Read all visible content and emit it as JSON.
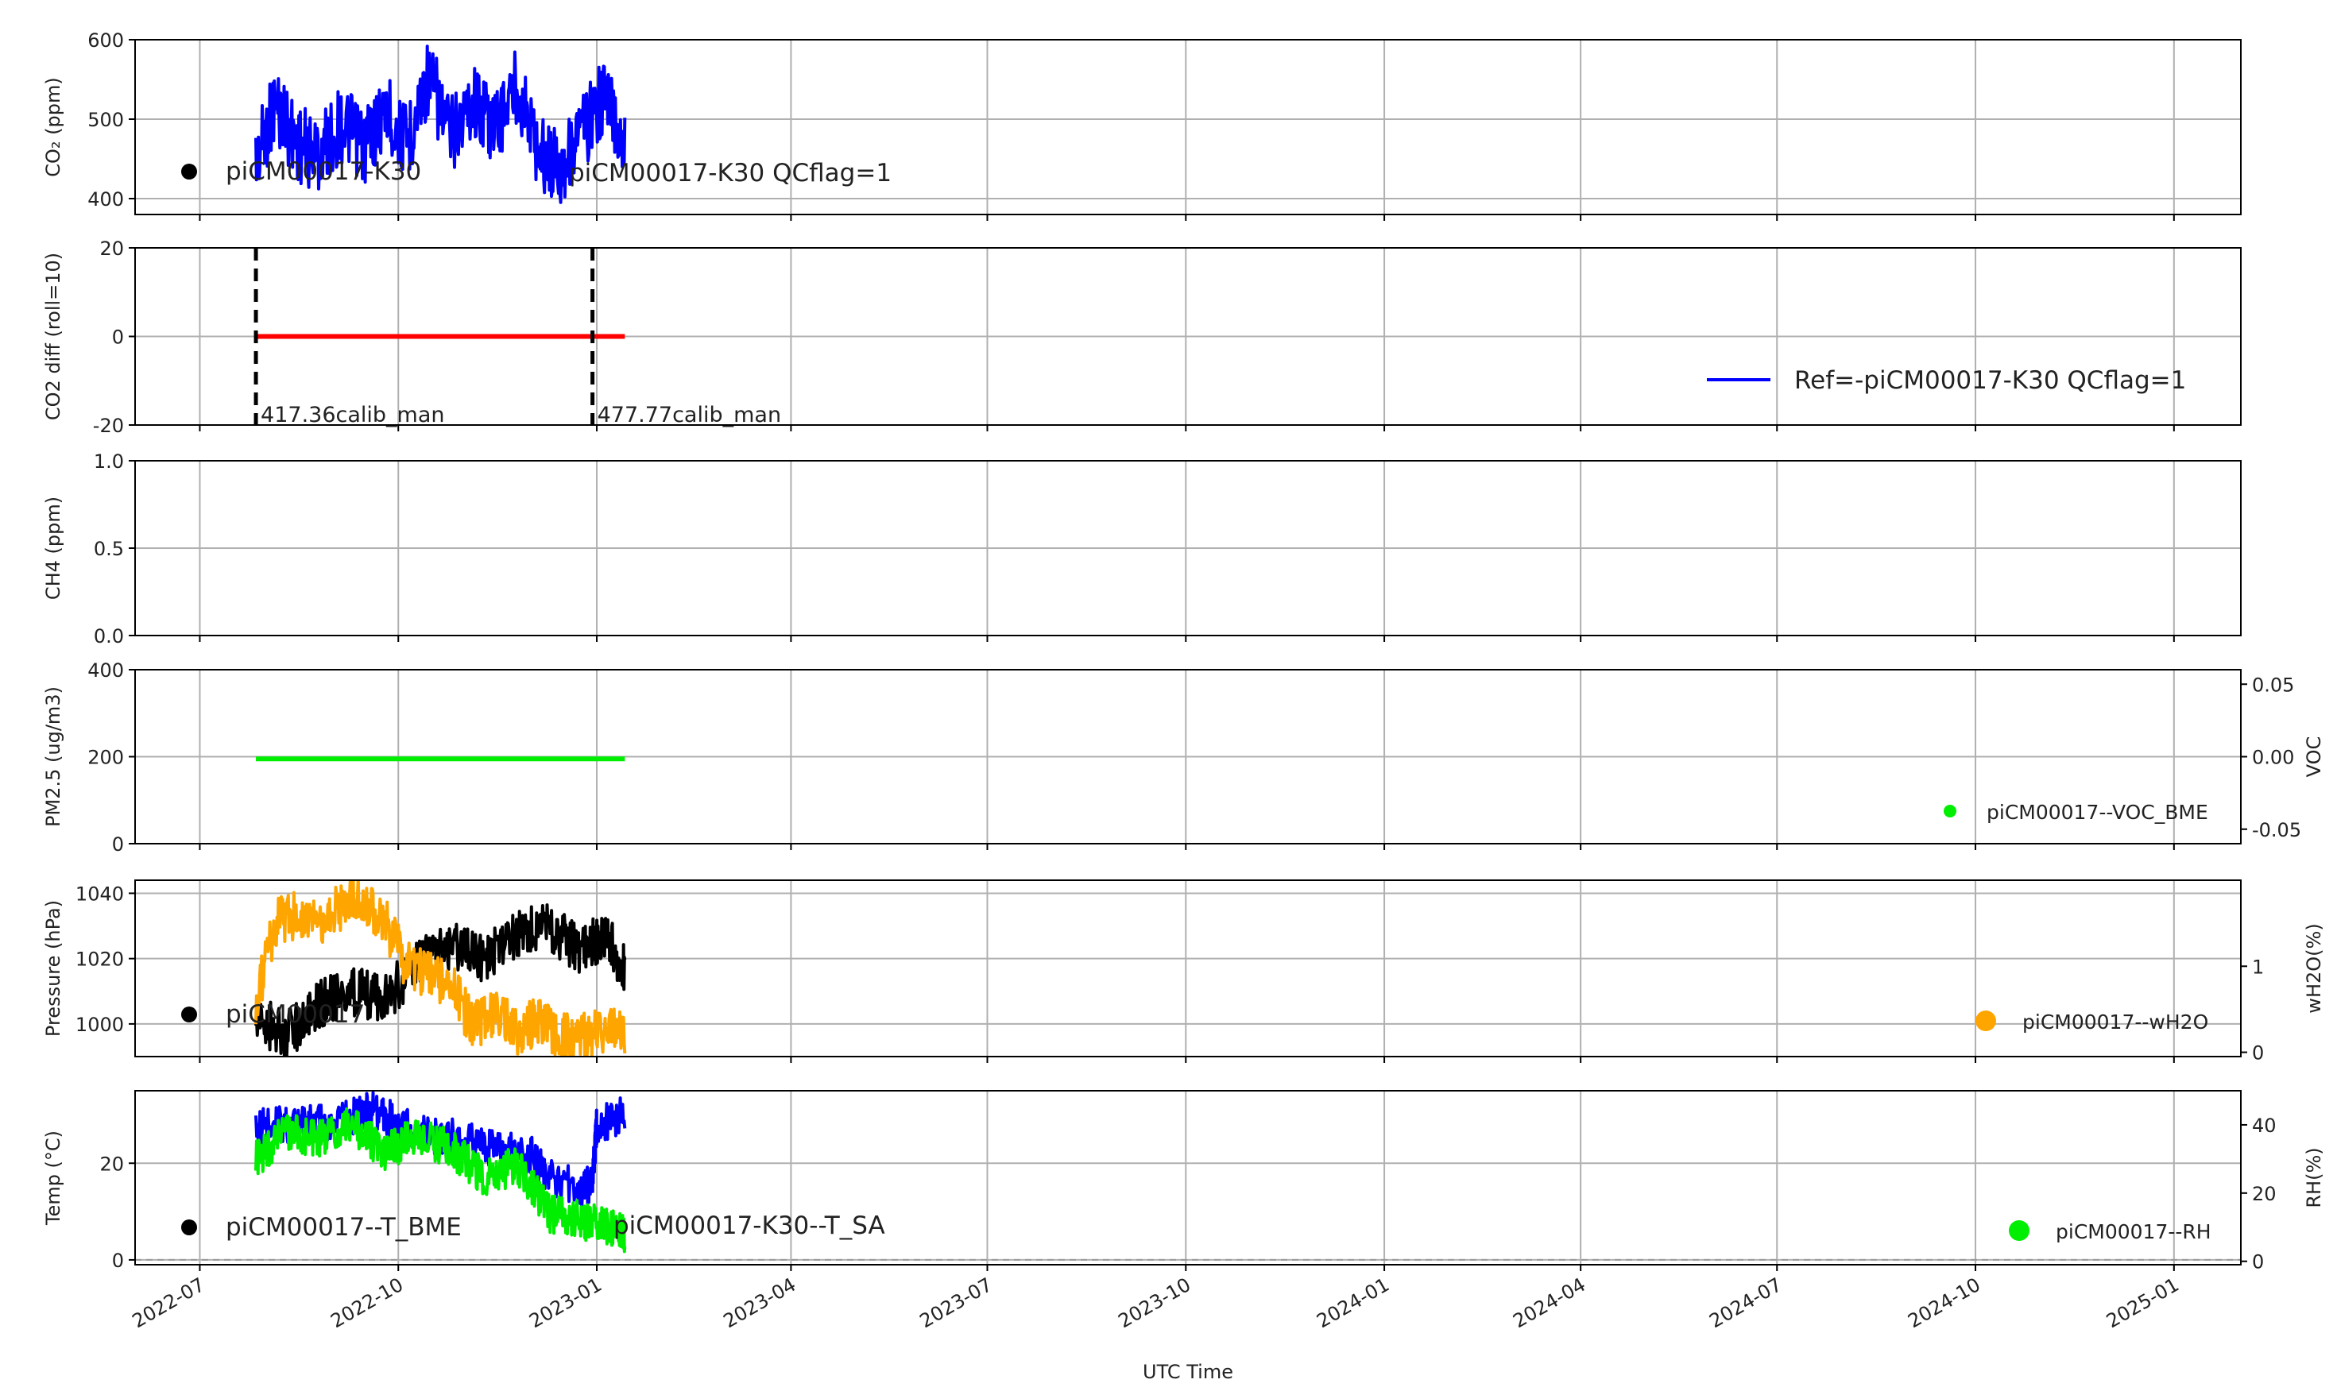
{
  "figure": {
    "xlabel": "UTC Time",
    "x_ticks": [
      "2022-07",
      "2022-10",
      "2023-01",
      "2023-04",
      "2023-07",
      "2023-10",
      "2024-01",
      "2024-04",
      "2024-07",
      "2024-10",
      "2025-01"
    ],
    "colors": {
      "grid": "#b0b0b0",
      "blue": "#0000ff",
      "red": "#ff0000",
      "green": "#00ee00",
      "orange": "#ffa500",
      "black": "#000000"
    }
  },
  "chart_data": [
    {
      "type": "line",
      "ylabel": "CO₂ (ppm)",
      "ylim": [
        380,
        600
      ],
      "yticks": [
        400,
        500,
        600
      ],
      "grid": true,
      "series": [
        {
          "name": "piCM00017-K30",
          "color": "#000000",
          "marker": "dot",
          "values": []
        },
        {
          "name": "piCM00017-K30 QCflag=1",
          "color": "#0000ff",
          "x": [
            "2022-07-27",
            "2022-08-05",
            "2022-08-15",
            "2022-08-25",
            "2022-09-05",
            "2022-09-15",
            "2022-09-25",
            "2022-10-05",
            "2022-10-15",
            "2022-10-25",
            "2022-11-05",
            "2022-11-15",
            "2022-11-25",
            "2022-12-05",
            "2022-12-15",
            "2022-12-25",
            "2023-01-05",
            "2023-01-14"
          ],
          "values": [
            445,
            520,
            470,
            455,
            495,
            465,
            510,
            470,
            555,
            480,
            525,
            490,
            545,
            460,
            440,
            485,
            530,
            470
          ]
        }
      ]
    },
    {
      "type": "line",
      "ylabel": "CO2 diff (roll=10)",
      "ylim": [
        -20,
        20
      ],
      "yticks": [
        -20,
        0,
        20
      ],
      "grid": true,
      "series": [
        {
          "name": "Ref=-piCM00017-K30 QCflag=1",
          "color": "#0000ff",
          "values": []
        },
        {
          "name": "",
          "color": "#ff0000",
          "x": [
            "2022-07-27",
            "2023-01-14"
          ],
          "values": [
            0,
            0
          ]
        }
      ],
      "vlines": [
        {
          "x": "2022-07-27",
          "label": "417.36calib_man"
        },
        {
          "x": "2022-12-30",
          "label": "477.77calib_man"
        }
      ]
    },
    {
      "type": "line",
      "ylabel": "CH4 (ppm)",
      "ylim": [
        0.0,
        1.0
      ],
      "yticks": [
        "0.0",
        "0.5",
        "1.0"
      ],
      "grid": true,
      "series": []
    },
    {
      "type": "line",
      "ylabel": "PM2.5 (ug/m3)",
      "ylim": [
        0,
        400
      ],
      "yticks": [
        0,
        200,
        400
      ],
      "y2label": "VOC",
      "y2lim": [
        -0.06,
        0.06
      ],
      "y2ticks": [
        "-0.05",
        "0.00",
        "0.05"
      ],
      "grid": true,
      "series": [
        {
          "name": "",
          "color": "#00ee00",
          "x": [
            "2022-07-27",
            "2023-01-14"
          ],
          "values": [
            195,
            195
          ]
        },
        {
          "name": "piCM00017--VOC_BME",
          "color": "#00ee00",
          "marker": "dot",
          "axis": "y2",
          "values": []
        }
      ]
    },
    {
      "type": "line",
      "ylabel": "Pressure (hPa)",
      "ylim": [
        990,
        1044
      ],
      "yticks": [
        1000,
        1020,
        1040
      ],
      "y2label": "wH2O(%)",
      "y2lim": [
        -0.05,
        2.0
      ],
      "y2ticks": [
        "0",
        "1"
      ],
      "grid": true,
      "series": [
        {
          "name": "piCM00017",
          "color": "#000000",
          "marker": "dot",
          "x": [
            "2022-07-27",
            "2022-08-10",
            "2022-08-25",
            "2022-09-10",
            "2022-09-25",
            "2022-10-10",
            "2022-10-25",
            "2022-11-10",
            "2022-11-25",
            "2022-12-10",
            "2022-12-25",
            "2023-01-05",
            "2023-01-14"
          ],
          "values": [
            1002,
            996,
            1006,
            1010,
            1008,
            1018,
            1024,
            1020,
            1028,
            1030,
            1022,
            1028,
            1016
          ]
        },
        {
          "name": "piCM00017--wH2O",
          "color": "#ffa500",
          "marker": "dot",
          "axis": "y2",
          "x": [
            "2022-07-27",
            "2022-08-05",
            "2022-08-15",
            "2022-08-25",
            "2022-09-05",
            "2022-09-15",
            "2022-09-25",
            "2022-10-05",
            "2022-10-15",
            "2022-10-25",
            "2022-11-05",
            "2022-11-15",
            "2022-11-25",
            "2022-12-05",
            "2022-12-15",
            "2022-12-25",
            "2023-01-05",
            "2023-01-14"
          ],
          "values": [
            0.6,
            1.5,
            1.6,
            1.5,
            1.7,
            1.8,
            1.5,
            1.0,
            0.9,
            0.8,
            0.3,
            0.5,
            0.25,
            0.35,
            0.2,
            0.2,
            0.25,
            0.2
          ]
        }
      ]
    },
    {
      "type": "line",
      "ylabel": "Temp (°C)",
      "ylim": [
        -1,
        35
      ],
      "yticks": [
        0,
        20
      ],
      "y2label": "RH(%)",
      "y2lim": [
        -1,
        50
      ],
      "y2ticks": [
        0,
        20,
        40
      ],
      "grid": true,
      "series": [
        {
          "name": "piCM00017--T_BME",
          "color": "#000000",
          "marker": "dot",
          "values": []
        },
        {
          "name": "piCM00017-K30--T_SA",
          "color": "#0000ff",
          "x": [
            "2022-07-27",
            "2022-08-10",
            "2022-08-25",
            "2022-09-10",
            "2022-09-20",
            "2022-10-01",
            "2022-10-15",
            "2022-11-01",
            "2022-11-15",
            "2022-12-01",
            "2022-12-10",
            "2022-12-25",
            "2022-12-30",
            "2023-01-01",
            "2023-01-14"
          ],
          "values": [
            28,
            28,
            28,
            30,
            31,
            28,
            26,
            25,
            23,
            22,
            17,
            15,
            16,
            28,
            30
          ]
        },
        {
          "name": "piCM00017--RH",
          "color": "#00ee00",
          "marker": "dot",
          "axis": "y2",
          "x": [
            "2022-07-27",
            "2022-08-10",
            "2022-08-25",
            "2022-09-10",
            "2022-09-25",
            "2022-10-10",
            "2022-10-25",
            "2022-11-10",
            "2022-11-25",
            "2022-12-10",
            "2022-12-25",
            "2023-01-05",
            "2023-01-14"
          ],
          "values": [
            30,
            38,
            36,
            40,
            32,
            37,
            33,
            25,
            28,
            14,
            12,
            10,
            8
          ]
        }
      ],
      "hline": 0
    }
  ]
}
